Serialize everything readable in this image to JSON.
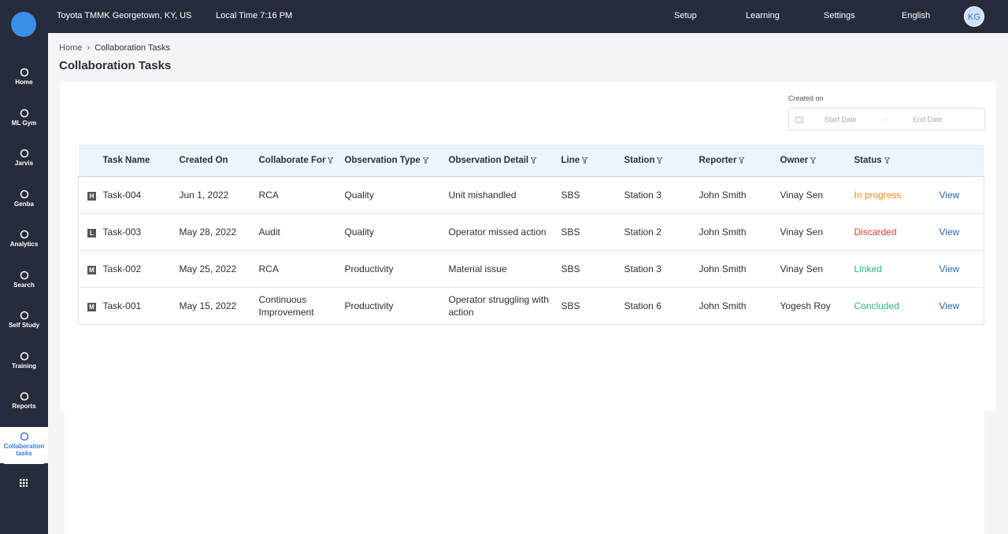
{
  "topbar": {
    "location": "Toyota TMMK Georgetown, KY, US",
    "time": "Local Time 7:16 PM",
    "menu": [
      "Setup",
      "Learning",
      "Settings",
      "English"
    ],
    "avatar": "KG"
  },
  "sidebar": {
    "items": [
      "Home",
      "ML Gym",
      "Jarvis",
      "Genba",
      "Analytics",
      "Search",
      "Self Study",
      "Training",
      "Reports",
      "Collaboration tasks"
    ]
  },
  "breadcrumb": [
    "Home",
    "Collaboration Tasks"
  ],
  "title": "Collaboration Tasks",
  "filter": {
    "label": "Created on",
    "start": "Start Date",
    "separator": "-",
    "end": "End Date"
  },
  "table": {
    "columns": [
      "Task Name",
      "Created On",
      "Collaborate For",
      "Observation Type",
      "Observation Detail",
      "Line",
      "Station",
      "Reporter",
      "Owner",
      "Status"
    ],
    "rows": [
      [
        "H",
        "Task-004",
        "Jun 1, 2022",
        "RCA",
        "Quality",
        "Unit mishandled",
        "SBS",
        "Station 3",
        "John Smith",
        "Vinay Sen",
        "In progress",
        "View"
      ],
      [
        "L",
        "Task-003",
        "May 28, 2022",
        "Audit",
        "Quality",
        "Operator missed action",
        "SBS",
        "Station 2",
        "John Smith",
        "Vinay Sen",
        "Discarded",
        "View"
      ],
      [
        "M",
        "Task-002",
        "May 25, 2022",
        "RCA",
        "Productivity",
        "Material issue",
        "SBS",
        "Station 3",
        "John Smith",
        "Vinay Sen",
        "Linked",
        "View"
      ],
      [
        "M",
        "Task-001",
        "May 15, 2022",
        "Continuous Improvement",
        "Productivity",
        "Operator struggling with action",
        "SBS",
        "Station 6",
        "John Smith",
        "Yogesh Roy",
        "Concluded",
        "View"
      ]
    ]
  }
}
